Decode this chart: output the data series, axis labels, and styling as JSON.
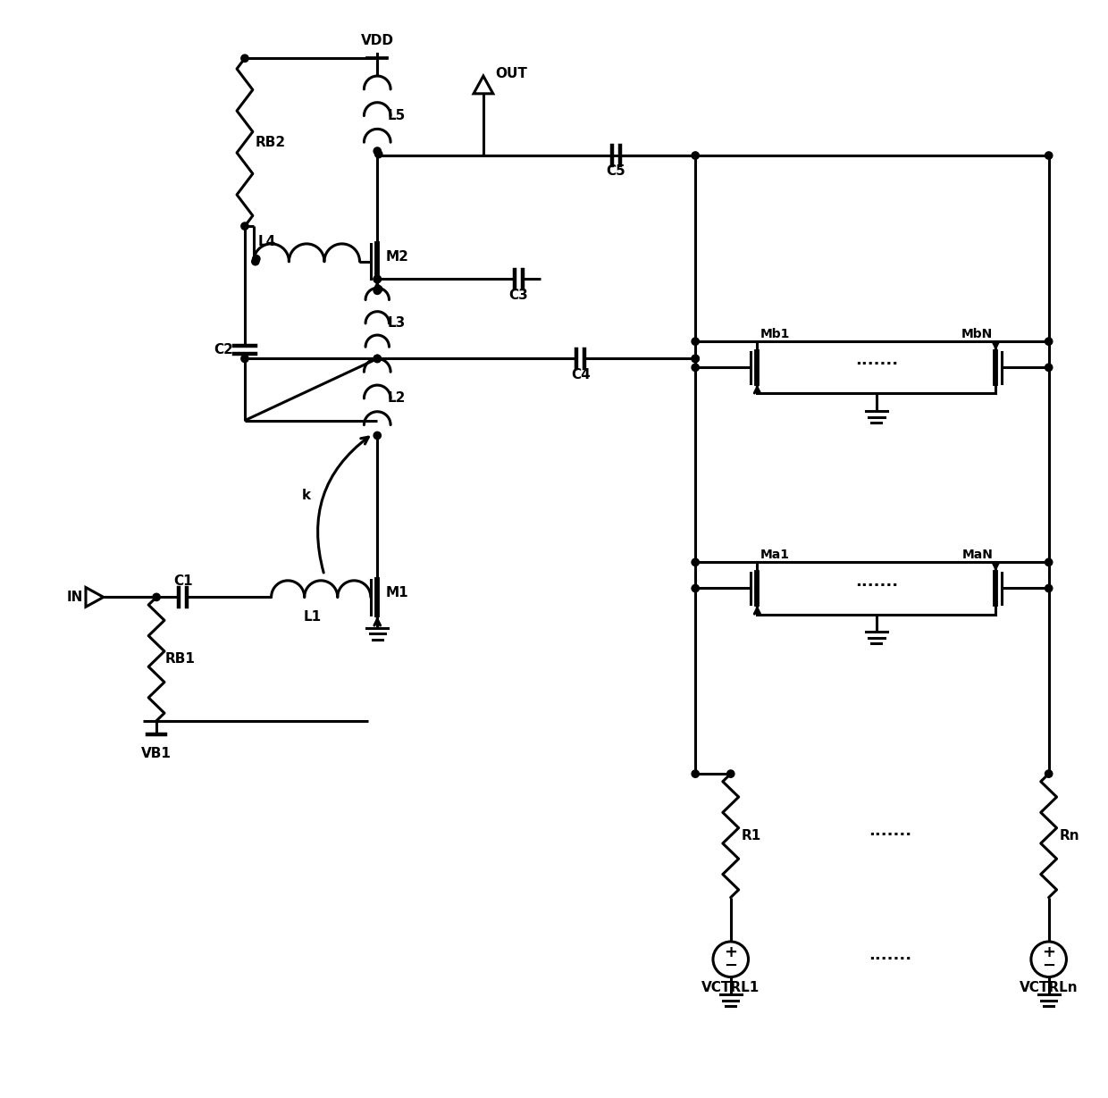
{
  "bg_color": "#ffffff",
  "line_color": "#000000",
  "lw": 2.2,
  "figsize": [
    12.4,
    12.29
  ],
  "dpi": 100,
  "xlim": [
    0,
    124
  ],
  "ylim": [
    0,
    122.9
  ]
}
